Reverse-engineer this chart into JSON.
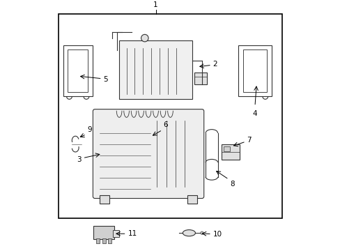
{
  "background_color": "#ffffff",
  "border_color": "#000000",
  "line_color": "#333333",
  "text_color": "#000000",
  "fig_width": 4.89,
  "fig_height": 3.6,
  "dpi": 100
}
